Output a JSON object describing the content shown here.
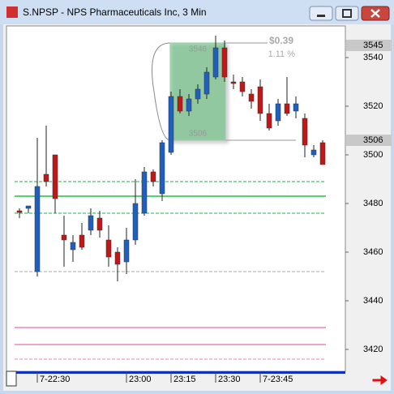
{
  "window": {
    "title": "S.NPSP - NPS Pharmaceuticals Inc, 3 Min"
  },
  "chart_data": {
    "type": "candlestick",
    "open": [
      3477,
      3478,
      3452,
      3492,
      3500,
      3467,
      3461,
      3467,
      3469,
      3474,
      3465,
      3460,
      3456,
      3465,
      3476,
      3493,
      3484,
      3501,
      3524,
      3518,
      3523,
      3525,
      3532,
      3544,
      3530,
      3530,
      3525,
      3528,
      3517,
      3514,
      3521,
      3518,
      3515,
      3500,
      3505
    ],
    "high": [
      3478,
      3479,
      3507,
      3512,
      3500,
      3475,
      3467,
      3472,
      3478,
      3477,
      3471,
      3462,
      3470,
      3490,
      3495,
      3494,
      3506,
      3526,
      3527,
      3525,
      3529,
      3536,
      3549,
      3547,
      3533,
      3532,
      3527,
      3531,
      3521,
      3523,
      3532,
      3524,
      3517,
      3504,
      3506
    ],
    "low": [
      3474,
      3476,
      3450,
      3487,
      3476,
      3454,
      3456,
      3461,
      3467,
      3466,
      3454,
      3448,
      3451,
      3463,
      3475,
      3487,
      3481,
      3500,
      3517,
      3516,
      3521,
      3523,
      3531,
      3530,
      3527,
      3524,
      3519,
      3514,
      3510,
      3512,
      3516,
      3515,
      3499,
      3499,
      3496
    ],
    "close": [
      3477,
      3479,
      3487,
      3489,
      3482,
      3465,
      3464,
      3462,
      3475,
      3469,
      3458,
      3455,
      3465,
      3480,
      3493,
      3489,
      3505,
      3524,
      3518,
      3523,
      3527,
      3534,
      3544,
      3532,
      3530,
      3526,
      3522,
      3517,
      3511,
      3521,
      3517,
      3521,
      3504,
      3502,
      3496
    ],
    "up_color": "#1f5fbf",
    "down_color": "#c01818",
    "ylim": [
      3411,
      3553
    ],
    "yticks": [
      3420,
      3440,
      3460,
      3480,
      3500,
      3520,
      3540
    ],
    "price_markers": [
      3545,
      3506
    ],
    "xticks": [
      {
        "value": 2,
        "label": "7-22:30"
      },
      {
        "value": 12,
        "label": "23:00"
      },
      {
        "value": 17,
        "label": "23:15"
      },
      {
        "value": 22,
        "label": "23:30"
      },
      {
        "value": 27,
        "label": "7-23:45"
      }
    ],
    "levels": [
      {
        "value": 3489,
        "color": "#22b04a",
        "style": "dashed"
      },
      {
        "value": 3483,
        "color": "#22c044",
        "style": "solid"
      },
      {
        "value": 3476,
        "color": "#22b04a",
        "style": "dashed"
      },
      {
        "value": 3452,
        "color": "#aaaaaa",
        "style": "dashed"
      },
      {
        "value": 3429,
        "color": "#f080c0",
        "style": "solid"
      },
      {
        "value": 3422,
        "color": "#f080c0",
        "style": "solid"
      },
      {
        "value": 3416,
        "color": "#f080c0",
        "style": "dashed"
      }
    ],
    "measure": {
      "high": 3546,
      "low": 3506,
      "start": 17,
      "end": 23,
      "change": "$0.39",
      "percent": "1.11 %"
    }
  }
}
